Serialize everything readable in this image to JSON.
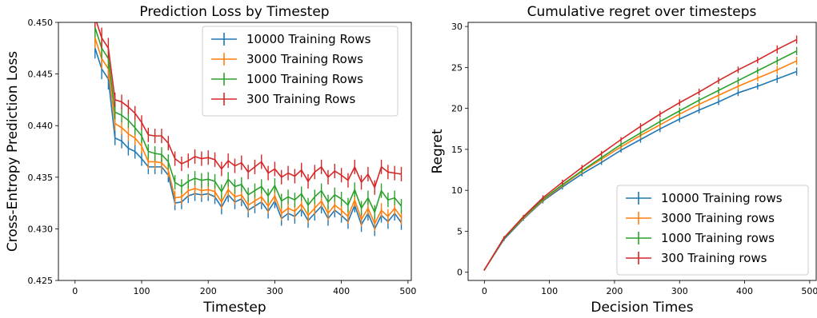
{
  "chart_data": [
    {
      "type": "line",
      "title": "Prediction Loss by Timestep",
      "xlabel": "Timestep",
      "ylabel": "Cross-Entropy Prediction Loss",
      "xlim": [
        -25,
        505
      ],
      "ylim": [
        0.425,
        0.45
      ],
      "xticks": [
        0,
        100,
        200,
        300,
        400,
        500
      ],
      "yticks": [
        "0.425",
        "0.430",
        "0.435",
        "0.440",
        "0.445",
        "0.450"
      ],
      "legend_position": "top-right",
      "error_bars": true,
      "x": [
        30,
        40,
        50,
        60,
        70,
        80,
        90,
        100,
        110,
        120,
        130,
        140,
        150,
        160,
        170,
        180,
        190,
        200,
        210,
        220,
        230,
        240,
        250,
        260,
        270,
        280,
        290,
        300,
        310,
        320,
        330,
        340,
        350,
        360,
        370,
        380,
        390,
        400,
        410,
        420,
        430,
        440,
        450,
        460,
        470,
        480,
        490
      ],
      "series": [
        {
          "name": "10000 Training Rows",
          "color": "#1f77b4",
          "values": [
            0.4475,
            0.4455,
            0.4445,
            0.4388,
            0.4385,
            0.4378,
            0.4375,
            0.4368,
            0.436,
            0.436,
            0.436,
            0.4352,
            0.4325,
            0.4326,
            0.4332,
            0.4334,
            0.4333,
            0.4334,
            0.4331,
            0.4321,
            0.4333,
            0.4326,
            0.4329,
            0.4318,
            0.4322,
            0.4326,
            0.4317,
            0.4327,
            0.431,
            0.4315,
            0.4312,
            0.4319,
            0.4308,
            0.4315,
            0.4322,
            0.431,
            0.4318,
            0.4313,
            0.4307,
            0.4323,
            0.4304,
            0.4315,
            0.43,
            0.4313,
            0.4307,
            0.4315,
            0.4306
          ],
          "errors": [
            0.001,
            0.001,
            0.001,
            0.0007,
            0.0007,
            0.0007,
            0.0007,
            0.0007,
            0.0007,
            0.0007,
            0.0007,
            0.0007,
            0.0007,
            0.0007,
            0.0007,
            0.0007,
            0.0007,
            0.0007,
            0.0007,
            0.0007,
            0.0007,
            0.0007,
            0.0007,
            0.0007,
            0.0007,
            0.0007,
            0.0007,
            0.0007,
            0.0007,
            0.0007,
            0.0007,
            0.0007,
            0.0007,
            0.0007,
            0.0007,
            0.0007,
            0.0007,
            0.0007,
            0.0007,
            0.0007,
            0.0007,
            0.0007,
            0.0007,
            0.0007,
            0.0007,
            0.0007,
            0.0007
          ]
        },
        {
          "name": "3000 Training Rows",
          "color": "#ff7f0e",
          "values": [
            0.4485,
            0.4465,
            0.4455,
            0.4402,
            0.4398,
            0.4392,
            0.4388,
            0.438,
            0.4365,
            0.4365,
            0.4364,
            0.4357,
            0.433,
            0.4331,
            0.4337,
            0.4339,
            0.4337,
            0.4338,
            0.4336,
            0.4326,
            0.4338,
            0.4331,
            0.4333,
            0.4323,
            0.4327,
            0.4331,
            0.4322,
            0.4332,
            0.4315,
            0.432,
            0.4317,
            0.4324,
            0.4313,
            0.432,
            0.4327,
            0.4315,
            0.4323,
            0.4318,
            0.4312,
            0.4328,
            0.4309,
            0.432,
            0.4305,
            0.4318,
            0.4312,
            0.432,
            0.4311
          ],
          "errors": [
            0.001,
            0.001,
            0.001,
            0.0007,
            0.0007,
            0.0007,
            0.0007,
            0.0007,
            0.0007,
            0.0007,
            0.0007,
            0.0007,
            0.0007,
            0.0007,
            0.0007,
            0.0007,
            0.0007,
            0.0007,
            0.0007,
            0.0007,
            0.0007,
            0.0007,
            0.0007,
            0.0007,
            0.0007,
            0.0007,
            0.0007,
            0.0007,
            0.0007,
            0.0007,
            0.0007,
            0.0007,
            0.0007,
            0.0007,
            0.0007,
            0.0007,
            0.0007,
            0.0007,
            0.0007,
            0.0007,
            0.0007,
            0.0007,
            0.0007,
            0.0007,
            0.0007,
            0.0007,
            0.0007
          ]
        },
        {
          "name": "1000 Training Rows",
          "color": "#2ca02c",
          "values": [
            0.4495,
            0.4475,
            0.4465,
            0.4413,
            0.441,
            0.4405,
            0.4398,
            0.439,
            0.4375,
            0.4373,
            0.4372,
            0.4365,
            0.4345,
            0.4341,
            0.4346,
            0.4349,
            0.4347,
            0.4348,
            0.4346,
            0.4336,
            0.4348,
            0.4341,
            0.4343,
            0.4333,
            0.4337,
            0.4341,
            0.4332,
            0.4342,
            0.4327,
            0.4331,
            0.4328,
            0.4334,
            0.4323,
            0.4331,
            0.4337,
            0.4326,
            0.4333,
            0.4329,
            0.4323,
            0.4338,
            0.432,
            0.433,
            0.4316,
            0.4337,
            0.4328,
            0.433,
            0.4322
          ],
          "errors": [
            0.001,
            0.001,
            0.001,
            0.0007,
            0.0007,
            0.0007,
            0.0007,
            0.0007,
            0.0007,
            0.0007,
            0.0007,
            0.0007,
            0.0007,
            0.0007,
            0.0007,
            0.0007,
            0.0007,
            0.0007,
            0.0007,
            0.0007,
            0.0007,
            0.0007,
            0.0007,
            0.0007,
            0.0007,
            0.0007,
            0.0007,
            0.0007,
            0.0007,
            0.0007,
            0.0007,
            0.0007,
            0.0007,
            0.0007,
            0.0007,
            0.0007,
            0.0007,
            0.0007,
            0.0007,
            0.0007,
            0.0007,
            0.0007,
            0.0007,
            0.0007,
            0.0007,
            0.0007,
            0.0007
          ]
        },
        {
          "name": "300 Training Rows",
          "color": "#d62728",
          "values": [
            0.4505,
            0.4485,
            0.4475,
            0.4425,
            0.4423,
            0.4418,
            0.4412,
            0.4403,
            0.4391,
            0.439,
            0.439,
            0.4383,
            0.4368,
            0.4363,
            0.4366,
            0.437,
            0.4368,
            0.4369,
            0.4367,
            0.4358,
            0.4366,
            0.4361,
            0.4364,
            0.4355,
            0.436,
            0.4365,
            0.4354,
            0.4358,
            0.435,
            0.4354,
            0.4351,
            0.4357,
            0.4346,
            0.4355,
            0.436,
            0.435,
            0.4356,
            0.4352,
            0.4347,
            0.436,
            0.4345,
            0.4353,
            0.434,
            0.436,
            0.4355,
            0.4354,
            0.4353
          ],
          "errors": [
            0.001,
            0.001,
            0.001,
            0.0007,
            0.0007,
            0.0007,
            0.0007,
            0.0007,
            0.0007,
            0.0007,
            0.0007,
            0.0007,
            0.0007,
            0.0007,
            0.0007,
            0.0007,
            0.0007,
            0.0007,
            0.0007,
            0.0007,
            0.0007,
            0.0007,
            0.0007,
            0.0007,
            0.0007,
            0.0007,
            0.0007,
            0.0007,
            0.0007,
            0.0007,
            0.0007,
            0.0007,
            0.0007,
            0.0007,
            0.0007,
            0.0007,
            0.0007,
            0.0007,
            0.0007,
            0.0007,
            0.0007,
            0.0007,
            0.0007,
            0.0007,
            0.0007,
            0.0007,
            0.0007
          ]
        }
      ]
    },
    {
      "type": "line",
      "title": "Cumulative regret over timesteps",
      "xlabel": "Decision Times",
      "ylabel": "Regret",
      "xlim": [
        -25,
        510
      ],
      "ylim": [
        -1,
        30.5
      ],
      "xticks": [
        0,
        100,
        200,
        300,
        400,
        500
      ],
      "yticks": [
        "0",
        "5",
        "10",
        "15",
        "20",
        "25",
        "30"
      ],
      "legend_position": "bottom-right",
      "error_bars": true,
      "x": [
        0,
        30,
        60,
        90,
        120,
        150,
        180,
        210,
        240,
        270,
        300,
        330,
        360,
        390,
        420,
        450,
        480
      ],
      "series": [
        {
          "name": "10000 Training rows",
          "color": "#1f77b4",
          "values": [
            0.3,
            4.0,
            6.5,
            8.7,
            10.4,
            12.0,
            13.4,
            14.9,
            16.2,
            17.5,
            18.7,
            19.8,
            20.8,
            21.9,
            22.7,
            23.6,
            24.5
          ],
          "errors": [
            0.1,
            0.2,
            0.2,
            0.3,
            0.3,
            0.3,
            0.3,
            0.3,
            0.4,
            0.4,
            0.4,
            0.4,
            0.4,
            0.4,
            0.4,
            0.5,
            0.5
          ]
        },
        {
          "name": "3000 Training rows",
          "color": "#ff7f0e",
          "values": [
            0.3,
            4.1,
            6.6,
            8.8,
            10.6,
            12.3,
            13.8,
            15.3,
            16.7,
            18.0,
            19.3,
            20.5,
            21.6,
            22.7,
            23.7,
            24.7,
            25.8
          ],
          "errors": [
            0.1,
            0.2,
            0.2,
            0.3,
            0.3,
            0.3,
            0.3,
            0.3,
            0.4,
            0.4,
            0.4,
            0.4,
            0.4,
            0.4,
            0.4,
            0.5,
            0.5
          ]
        },
        {
          "name": "1000 Training rows",
          "color": "#2ca02c",
          "values": [
            0.3,
            4.1,
            6.7,
            8.9,
            10.7,
            12.4,
            14.0,
            15.6,
            17.0,
            18.4,
            19.7,
            21.0,
            22.2,
            23.4,
            24.6,
            25.8,
            27.0
          ],
          "errors": [
            0.1,
            0.2,
            0.2,
            0.3,
            0.3,
            0.3,
            0.3,
            0.3,
            0.4,
            0.4,
            0.4,
            0.4,
            0.4,
            0.4,
            0.4,
            0.5,
            0.5
          ]
        },
        {
          "name": "300 Training rows",
          "color": "#d62728",
          "values": [
            0.3,
            4.2,
            6.8,
            9.1,
            11.0,
            12.8,
            14.5,
            16.2,
            17.8,
            19.3,
            20.7,
            22.0,
            23.4,
            24.7,
            25.9,
            27.2,
            28.4
          ],
          "errors": [
            0.1,
            0.2,
            0.2,
            0.3,
            0.3,
            0.3,
            0.3,
            0.3,
            0.4,
            0.4,
            0.4,
            0.4,
            0.4,
            0.4,
            0.4,
            0.5,
            0.5
          ]
        }
      ]
    }
  ]
}
